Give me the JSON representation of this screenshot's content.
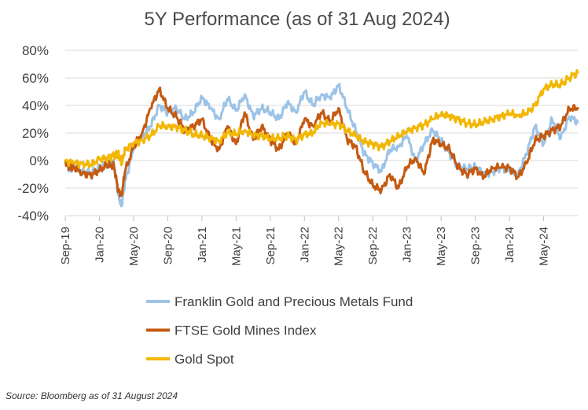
{
  "chart_data": {
    "type": "line",
    "title": "5Y Performance (as of 31 Aug 2024)",
    "xlabel": "",
    "ylabel": "",
    "ylim": [
      -40,
      80
    ],
    "y_ticks": [
      80,
      60,
      40,
      20,
      0,
      -20,
      -40
    ],
    "y_tick_labels": [
      "80%",
      "60%",
      "40%",
      "20%",
      "0%",
      "-20%",
      "-40%"
    ],
    "x_ticks": [
      0,
      4,
      8,
      12,
      16,
      20,
      24,
      28,
      32,
      36,
      40,
      44,
      48,
      52,
      56
    ],
    "x_tick_labels": [
      "Sep-19",
      "Jan-20",
      "May-20",
      "Sep-20",
      "Jan-21",
      "May-21",
      "Sep-21",
      "Jan-22",
      "May-22",
      "Sep-22",
      "Jan-23",
      "May-23",
      "Sep-23",
      "Jan-24",
      "May-24"
    ],
    "x_range": [
      0,
      60
    ],
    "x_unit": "months since Sep-2019",
    "grid": "horizontal",
    "legend_position": "bottom",
    "series": [
      {
        "name": "Franklin Gold and Precious Metals Fund",
        "color": "#9DC3E6",
        "points": [
          [
            0,
            0
          ],
          [
            0.5,
            -6
          ],
          [
            1,
            -4
          ],
          [
            2,
            -8
          ],
          [
            3,
            -9
          ],
          [
            4,
            -5
          ],
          [
            5,
            -2
          ],
          [
            5.7,
            -2
          ],
          [
            6.2,
            -25
          ],
          [
            6.6,
            -33
          ],
          [
            7,
            -15
          ],
          [
            8,
            8
          ],
          [
            9,
            18
          ],
          [
            10,
            25
          ],
          [
            11,
            40
          ],
          [
            12,
            35
          ],
          [
            13,
            38
          ],
          [
            14,
            30
          ],
          [
            15,
            35
          ],
          [
            16,
            46
          ],
          [
            17,
            38
          ],
          [
            18,
            30
          ],
          [
            19,
            45
          ],
          [
            20,
            36
          ],
          [
            21,
            48
          ],
          [
            22,
            32
          ],
          [
            23,
            38
          ],
          [
            24,
            35
          ],
          [
            25,
            30
          ],
          [
            26,
            42
          ],
          [
            27,
            35
          ],
          [
            28,
            50
          ],
          [
            29,
            40
          ],
          [
            30,
            48
          ],
          [
            31,
            45
          ],
          [
            32,
            55
          ],
          [
            33,
            38
          ],
          [
            34,
            22
          ],
          [
            35,
            5
          ],
          [
            36,
            -2
          ],
          [
            37,
            -8
          ],
          [
            38,
            8
          ],
          [
            39,
            10
          ],
          [
            40,
            18
          ],
          [
            41,
            0
          ],
          [
            42,
            12
          ],
          [
            43,
            22
          ],
          [
            44,
            15
          ],
          [
            45,
            5
          ],
          [
            46,
            -4
          ],
          [
            47,
            -6
          ],
          [
            48,
            -4
          ],
          [
            49,
            -10
          ],
          [
            50,
            -8
          ],
          [
            51,
            -5
          ],
          [
            52,
            -8
          ],
          [
            53,
            -10
          ],
          [
            54,
            5
          ],
          [
            55,
            25
          ],
          [
            56,
            12
          ],
          [
            57,
            30
          ],
          [
            58,
            16
          ],
          [
            59,
            32
          ],
          [
            60,
            28
          ]
        ]
      },
      {
        "name": "FTSE Gold Mines Index",
        "color": "#C55A11",
        "points": [
          [
            0,
            0
          ],
          [
            0.5,
            -6
          ],
          [
            1,
            -5
          ],
          [
            2,
            -9
          ],
          [
            3,
            -11
          ],
          [
            4,
            -7
          ],
          [
            5,
            -3
          ],
          [
            5.7,
            -4
          ],
          [
            6.2,
            -22
          ],
          [
            6.6,
            -25
          ],
          [
            7,
            -8
          ],
          [
            8,
            10
          ],
          [
            9,
            20
          ],
          [
            10,
            38
          ],
          [
            11,
            52
          ],
          [
            12,
            38
          ],
          [
            13,
            32
          ],
          [
            14,
            22
          ],
          [
            15,
            25
          ],
          [
            16,
            30
          ],
          [
            17,
            15
          ],
          [
            18,
            8
          ],
          [
            19,
            25
          ],
          [
            20,
            12
          ],
          [
            21,
            35
          ],
          [
            22,
            15
          ],
          [
            23,
            25
          ],
          [
            24,
            15
          ],
          [
            25,
            8
          ],
          [
            26,
            20
          ],
          [
            27,
            12
          ],
          [
            28,
            30
          ],
          [
            29,
            25
          ],
          [
            30,
            35
          ],
          [
            31,
            28
          ],
          [
            32,
            38
          ],
          [
            33,
            15
          ],
          [
            34,
            10
          ],
          [
            35,
            -8
          ],
          [
            36,
            -18
          ],
          [
            37,
            -22
          ],
          [
            38,
            -10
          ],
          [
            39,
            -20
          ],
          [
            40,
            -5
          ],
          [
            41,
            2
          ],
          [
            42,
            -10
          ],
          [
            43,
            15
          ],
          [
            44,
            12
          ],
          [
            45,
            8
          ],
          [
            46,
            -5
          ],
          [
            47,
            -10
          ],
          [
            48,
            -6
          ],
          [
            49,
            -12
          ],
          [
            50,
            -5
          ],
          [
            51,
            -5
          ],
          [
            52,
            -5
          ],
          [
            53,
            -12
          ],
          [
            54,
            -2
          ],
          [
            55,
            15
          ],
          [
            56,
            18
          ],
          [
            57,
            22
          ],
          [
            58,
            25
          ],
          [
            59,
            38
          ],
          [
            60,
            38
          ]
        ]
      },
      {
        "name": "Gold Spot",
        "color": "#F2B705",
        "points": [
          [
            0,
            0
          ],
          [
            1,
            -2
          ],
          [
            2,
            -2
          ],
          [
            3,
            -3
          ],
          [
            4,
            1
          ],
          [
            5,
            2
          ],
          [
            5.7,
            4
          ],
          [
            6.2,
            5
          ],
          [
            6.6,
            -2
          ],
          [
            7,
            8
          ],
          [
            8,
            12
          ],
          [
            9,
            15
          ],
          [
            10,
            18
          ],
          [
            11,
            25
          ],
          [
            12,
            25
          ],
          [
            13,
            24
          ],
          [
            14,
            22
          ],
          [
            15,
            19
          ],
          [
            16,
            18
          ],
          [
            17,
            16
          ],
          [
            18,
            14
          ],
          [
            19,
            20
          ],
          [
            20,
            19
          ],
          [
            21,
            22
          ],
          [
            22,
            18
          ],
          [
            23,
            18
          ],
          [
            24,
            16
          ],
          [
            25,
            16
          ],
          [
            26,
            18
          ],
          [
            27,
            15
          ],
          [
            28,
            19
          ],
          [
            29,
            20
          ],
          [
            30,
            28
          ],
          [
            31,
            26
          ],
          [
            32,
            27
          ],
          [
            33,
            22
          ],
          [
            34,
            18
          ],
          [
            35,
            14
          ],
          [
            36,
            12
          ],
          [
            37,
            10
          ],
          [
            38,
            14
          ],
          [
            39,
            18
          ],
          [
            40,
            21
          ],
          [
            41,
            24
          ],
          [
            42,
            26
          ],
          [
            43,
            30
          ],
          [
            44,
            34
          ],
          [
            45,
            32
          ],
          [
            46,
            30
          ],
          [
            47,
            27
          ],
          [
            48,
            26
          ],
          [
            49,
            28
          ],
          [
            50,
            30
          ],
          [
            51,
            32
          ],
          [
            52,
            34
          ],
          [
            53,
            33
          ],
          [
            54,
            34
          ],
          [
            55,
            40
          ],
          [
            56,
            52
          ],
          [
            57,
            55
          ],
          [
            58,
            55
          ],
          [
            59,
            60
          ],
          [
            60,
            64
          ]
        ]
      }
    ]
  },
  "source_note": "Source: Bloomberg as of 31 August 2024"
}
